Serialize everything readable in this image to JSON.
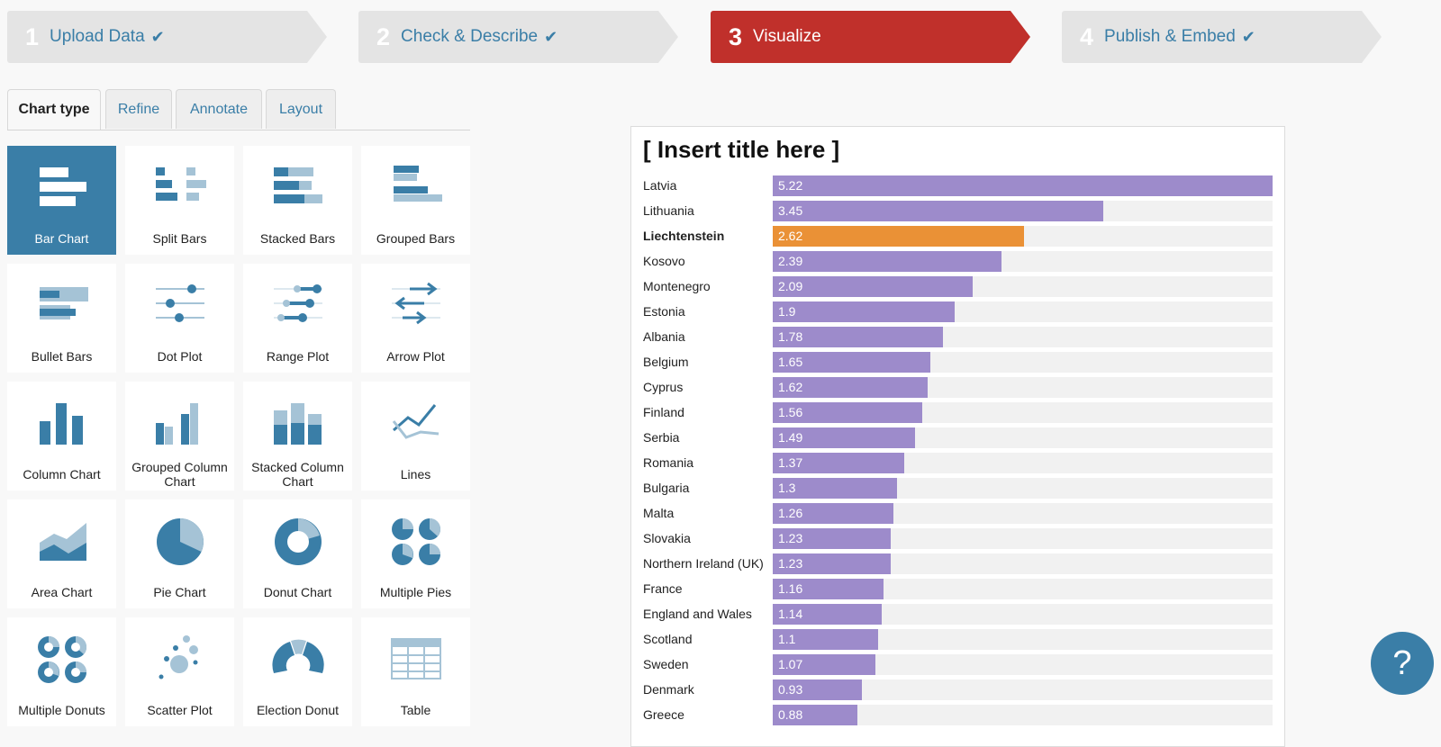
{
  "steps": [
    {
      "num": "1",
      "label": "Upload Data",
      "done": true
    },
    {
      "num": "2",
      "label": "Check & Describe",
      "done": true
    },
    {
      "num": "3",
      "label": "Visualize",
      "done": false
    },
    {
      "num": "4",
      "label": "Publish & Embed",
      "done": true
    }
  ],
  "tabs": [
    "Chart type",
    "Refine",
    "Annotate",
    "Layout"
  ],
  "chart_types": [
    {
      "label": "Bar Chart",
      "icon": "bar-chart-icon"
    },
    {
      "label": "Split Bars",
      "icon": "split-bars-icon"
    },
    {
      "label": "Stacked Bars",
      "icon": "stacked-bars-icon"
    },
    {
      "label": "Grouped Bars",
      "icon": "grouped-bars-icon"
    },
    {
      "label": "Bullet Bars",
      "icon": "bullet-bars-icon"
    },
    {
      "label": "Dot Plot",
      "icon": "dot-plot-icon"
    },
    {
      "label": "Range Plot",
      "icon": "range-plot-icon"
    },
    {
      "label": "Arrow Plot",
      "icon": "arrow-plot-icon"
    },
    {
      "label": "Column Chart",
      "icon": "column-chart-icon"
    },
    {
      "label": "Grouped Column Chart",
      "icon": "grouped-column-chart-icon"
    },
    {
      "label": "Stacked Column Chart",
      "icon": "stacked-column-chart-icon"
    },
    {
      "label": "Lines",
      "icon": "lines-icon"
    },
    {
      "label": "Area Chart",
      "icon": "area-chart-icon"
    },
    {
      "label": "Pie Chart",
      "icon": "pie-chart-icon"
    },
    {
      "label": "Donut Chart",
      "icon": "donut-chart-icon"
    },
    {
      "label": "Multiple Pies",
      "icon": "multiple-pies-icon"
    },
    {
      "label": "Multiple Donuts",
      "icon": "multiple-donuts-icon"
    },
    {
      "label": "Scatter Plot",
      "icon": "scatter-plot-icon"
    },
    {
      "label": "Election Donut",
      "icon": "election-donut-icon"
    },
    {
      "label": "Table",
      "icon": "table-icon"
    }
  ],
  "selected_chart_type": "Bar Chart",
  "help_label": "?",
  "colors": {
    "accent": "#3a7ea7",
    "active_step": "#c0302b",
    "bar": "#9d8bcb",
    "highlight_bar": "#ea9136",
    "bar_track": "#f1f1f1"
  },
  "chart_data": {
    "type": "bar",
    "title": "[ Insert title here ]",
    "highlighted": "Liechtenstein",
    "categories": [
      "Latvia",
      "Lithuania",
      "Liechtenstein",
      "Kosovo",
      "Montenegro",
      "Estonia",
      "Albania",
      "Belgium",
      "Cyprus",
      "Finland",
      "Serbia",
      "Romania",
      "Bulgaria",
      "Malta",
      "Slovakia",
      "Northern Ireland (UK)",
      "France",
      "England and Wales",
      "Scotland",
      "Sweden",
      "Denmark",
      "Greece"
    ],
    "values": [
      5.22,
      3.45,
      2.62,
      2.39,
      2.09,
      1.9,
      1.78,
      1.65,
      1.62,
      1.56,
      1.49,
      1.37,
      1.3,
      1.26,
      1.23,
      1.23,
      1.16,
      1.14,
      1.1,
      1.07,
      0.93,
      0.88
    ],
    "value_labels": [
      "5.22",
      "3.45",
      "2.62",
      "2.39",
      "2.09",
      "1.9",
      "1.78",
      "1.65",
      "1.62",
      "1.56",
      "1.49",
      "1.37",
      "1.3",
      "1.26",
      "1.23",
      "1.23",
      "1.16",
      "1.14",
      "1.1",
      "1.07",
      "0.93",
      "0.88"
    ],
    "xlim": [
      0,
      5.22
    ]
  }
}
